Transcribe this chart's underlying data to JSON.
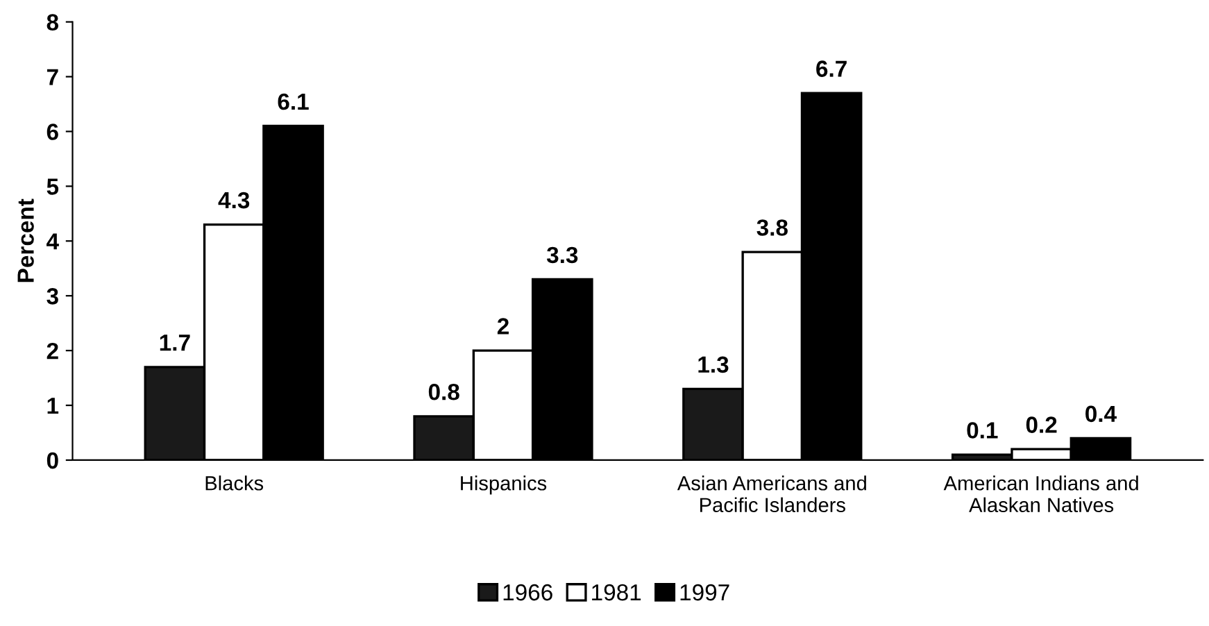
{
  "chart_data": {
    "type": "bar",
    "ylabel": "Percent",
    "categories": [
      "Blacks",
      "Hispanics",
      "Asian Americans and\nPacific Islanders",
      "American Indians and\nAlaskan Natives"
    ],
    "series": [
      {
        "name": "1966",
        "color": "#1a1a1a",
        "values": [
          1.7,
          0.8,
          1.3,
          0.1
        ]
      },
      {
        "name": "1981",
        "color": "#ffffff",
        "values": [
          4.3,
          2,
          3.8,
          0.2
        ]
      },
      {
        "name": "1997",
        "color": "#000000",
        "values": [
          6.1,
          3.3,
          6.7,
          0.4
        ]
      }
    ],
    "ylim": [
      0,
      8
    ],
    "yticks": [
      0,
      1,
      2,
      3,
      4,
      5,
      6,
      7,
      8
    ],
    "data_labels": true,
    "legend": "bottom",
    "grid": false
  }
}
